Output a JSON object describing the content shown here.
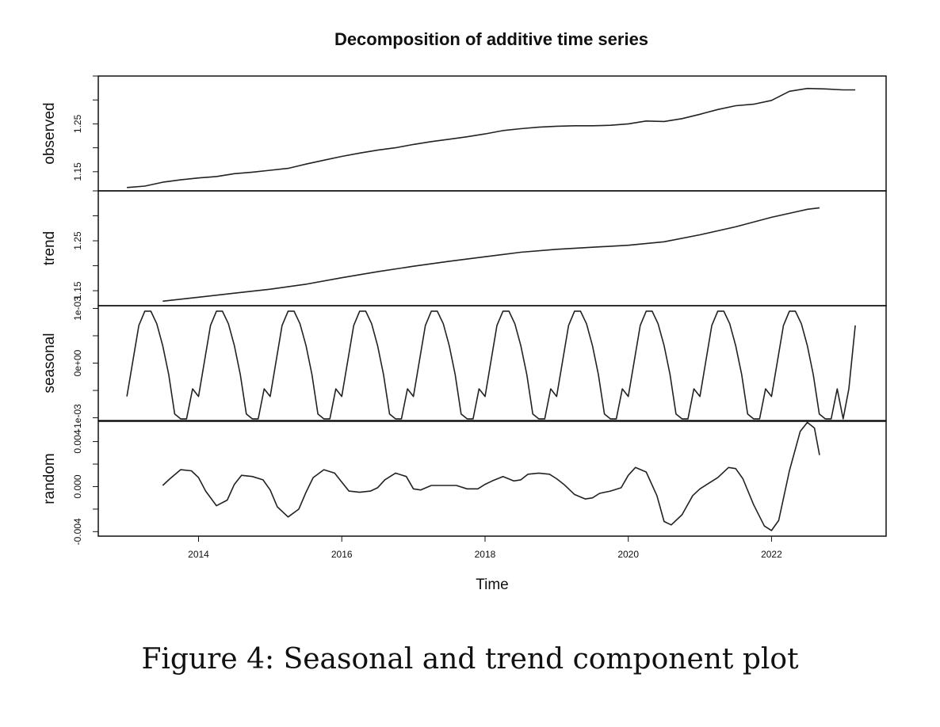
{
  "figure_caption": "Figure 4: Seasonal and trend component plot",
  "chart_data": {
    "type": "line",
    "title": "Decomposition of additive time series",
    "xlabel": "Time",
    "xlim": [
      2012.6,
      2023.6
    ],
    "x_ticks": [
      2014,
      2016,
      2018,
      2020,
      2022
    ],
    "x_tick_labels": [
      "2014",
      "2016",
      "2018",
      "2020",
      "2022"
    ],
    "panels": [
      {
        "name": "observed",
        "ylim": [
          1.11,
          1.35
        ],
        "y_ticks": [
          1.15,
          1.25
        ],
        "y_tick_labels": [
          "1.15",
          "1.25"
        ],
        "x": [
          2013.0,
          2013.25,
          2013.5,
          2013.75,
          2014.0,
          2014.25,
          2014.5,
          2014.75,
          2015.0,
          2015.25,
          2015.5,
          2015.75,
          2016.0,
          2016.25,
          2016.5,
          2016.75,
          2017.0,
          2017.25,
          2017.5,
          2017.75,
          2018.0,
          2018.25,
          2018.5,
          2018.75,
          2019.0,
          2019.25,
          2019.5,
          2019.75,
          2020.0,
          2020.25,
          2020.5,
          2020.75,
          2021.0,
          2021.25,
          2021.5,
          2021.75,
          2022.0,
          2022.25,
          2022.5,
          2022.75,
          2023.0,
          2023.17
        ],
        "values": [
          1.117,
          1.12,
          1.128,
          1.133,
          1.137,
          1.14,
          1.146,
          1.149,
          1.153,
          1.157,
          1.166,
          1.174,
          1.182,
          1.189,
          1.195,
          1.2,
          1.207,
          1.213,
          1.218,
          1.223,
          1.229,
          1.236,
          1.24,
          1.243,
          1.245,
          1.246,
          1.246,
          1.247,
          1.25,
          1.256,
          1.255,
          1.261,
          1.27,
          1.28,
          1.288,
          1.291,
          1.299,
          1.318,
          1.324,
          1.323,
          1.321,
          1.321
        ]
      },
      {
        "name": "trend",
        "ylim": [
          1.12,
          1.35
        ],
        "y_ticks": [
          1.15,
          1.25
        ],
        "y_tick_labels": [
          "1.15",
          "1.25"
        ],
        "x": [
          2013.5,
          2014.0,
          2014.5,
          2015.0,
          2015.5,
          2016.0,
          2016.5,
          2017.0,
          2017.5,
          2018.0,
          2018.5,
          2019.0,
          2019.5,
          2020.0,
          2020.5,
          2021.0,
          2021.5,
          2022.0,
          2022.5,
          2022.67
        ],
        "values": [
          1.129,
          1.137,
          1.145,
          1.153,
          1.163,
          1.176,
          1.188,
          1.199,
          1.209,
          1.218,
          1.227,
          1.233,
          1.237,
          1.241,
          1.248,
          1.262,
          1.278,
          1.297,
          1.313,
          1.316
        ]
      },
      {
        "name": "seasonal",
        "ylim": [
          -0.00105,
          0.00105
        ],
        "y_ticks": [
          -0.001,
          0.0,
          0.001
        ],
        "y_tick_labels": [
          "-1e-03",
          "0e+00",
          "1e-03"
        ],
        "period": 1,
        "cycle_x_offsets": [
          0.0,
          0.1667,
          0.25,
          0.3333,
          0.4167,
          0.5,
          0.5833,
          0.6667,
          0.75,
          0.8333,
          0.9167
        ],
        "cycle_values": [
          -0.00061,
          0.00069,
          0.00095,
          0.00095,
          0.00072,
          0.00032,
          -0.00021,
          -0.00093,
          -0.00102,
          -0.00102,
          -0.00047
        ],
        "cycles_start": [
          2013,
          2014,
          2015,
          2016,
          2017,
          2018,
          2019,
          2020,
          2021,
          2022
        ],
        "x_end": [
          2023.0,
          2023.08,
          2023.17
        ],
        "values_end": [
          -0.00102,
          -0.00047,
          0.00069
        ]
      },
      {
        "name": "random",
        "ylim": [
          -0.0044,
          0.0058
        ],
        "y_ticks": [
          -0.004,
          0.0,
          0.004
        ],
        "y_tick_labels": [
          "-0.004",
          "0.000",
          "0.004"
        ],
        "x": [
          2013.5,
          2013.6,
          2013.75,
          2013.9,
          2014.0,
          2014.1,
          2014.25,
          2014.4,
          2014.5,
          2014.6,
          2014.75,
          2014.9,
          2015.0,
          2015.1,
          2015.25,
          2015.4,
          2015.5,
          2015.6,
          2015.75,
          2015.9,
          2016.0,
          2016.1,
          2016.25,
          2016.4,
          2016.5,
          2016.6,
          2016.75,
          2016.9,
          2017.0,
          2017.1,
          2017.25,
          2017.4,
          2017.5,
          2017.6,
          2017.75,
          2017.9,
          2018.0,
          2018.1,
          2018.25,
          2018.4,
          2018.5,
          2018.6,
          2018.75,
          2018.9,
          2019.0,
          2019.1,
          2019.25,
          2019.4,
          2019.5,
          2019.6,
          2019.75,
          2019.9,
          2020.0,
          2020.1,
          2020.25,
          2020.4,
          2020.5,
          2020.6,
          2020.75,
          2020.9,
          2021.0,
          2021.1,
          2021.25,
          2021.4,
          2021.5,
          2021.6,
          2021.75,
          2021.9,
          2022.0,
          2022.1,
          2022.25,
          2022.4,
          2022.5,
          2022.6,
          2022.67
        ],
        "values": [
          0.0001,
          0.0007,
          0.0015,
          0.0014,
          0.0008,
          -0.0004,
          -0.0017,
          -0.0012,
          0.0002,
          0.001,
          0.0009,
          0.0006,
          -0.0003,
          -0.0018,
          -0.0027,
          -0.002,
          -0.0005,
          0.0008,
          0.0015,
          0.0012,
          0.0004,
          -0.0004,
          -0.0005,
          -0.0004,
          -0.0001,
          0.0006,
          0.0012,
          0.0009,
          -0.0002,
          -0.0003,
          0.0001,
          0.0001,
          0.0001,
          0.0001,
          -0.0002,
          -0.0002,
          0.0002,
          0.0005,
          0.0009,
          0.0005,
          0.0006,
          0.0011,
          0.0012,
          0.0011,
          0.0007,
          0.0002,
          -0.0007,
          -0.0011,
          -0.001,
          -0.0006,
          -0.0004,
          -0.0001,
          0.001,
          0.0017,
          0.0013,
          -0.0008,
          -0.0031,
          -0.0034,
          -0.0025,
          -0.0008,
          -0.0002,
          0.0002,
          0.0008,
          0.0017,
          0.0016,
          0.0007,
          -0.0016,
          -0.0035,
          -0.0039,
          -0.003,
          0.0014,
          0.0049,
          0.0057,
          0.0052,
          0.0028
        ]
      }
    ]
  }
}
